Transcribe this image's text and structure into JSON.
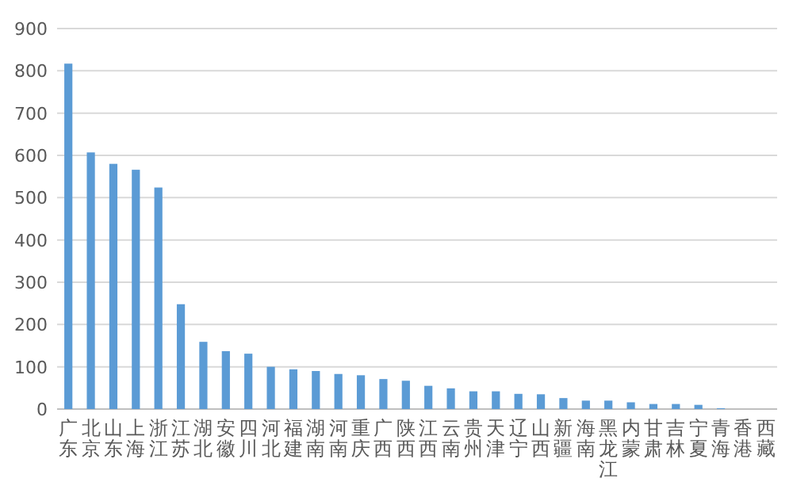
{
  "chart_data": {
    "type": "bar",
    "categories": [
      "广东",
      "北京",
      "山东",
      "上海",
      "浙江",
      "江苏",
      "湖北",
      "安徽",
      "四川",
      "河北",
      "福建",
      "湖南",
      "河南",
      "重庆",
      "广西",
      "陕西",
      "江西",
      "云南",
      "贵州",
      "天津",
      "辽宁",
      "山西",
      "新疆",
      "海南",
      "黑龙江",
      "内蒙",
      "甘肃",
      "吉林",
      "宁夏",
      "青海",
      "香港",
      "西藏"
    ],
    "values": [
      817,
      607,
      580,
      566,
      524,
      248,
      159,
      137,
      131,
      100,
      94,
      90,
      83,
      80,
      71,
      67,
      55,
      49,
      42,
      42,
      36,
      35,
      26,
      20,
      20,
      16,
      12,
      12,
      10,
      2,
      0,
      0
    ],
    "color": "#5b9bd5",
    "ylim": [
      0,
      900
    ],
    "yticks": [
      0,
      100,
      200,
      300,
      400,
      500,
      600,
      700,
      800,
      900
    ],
    "grid": "y"
  }
}
